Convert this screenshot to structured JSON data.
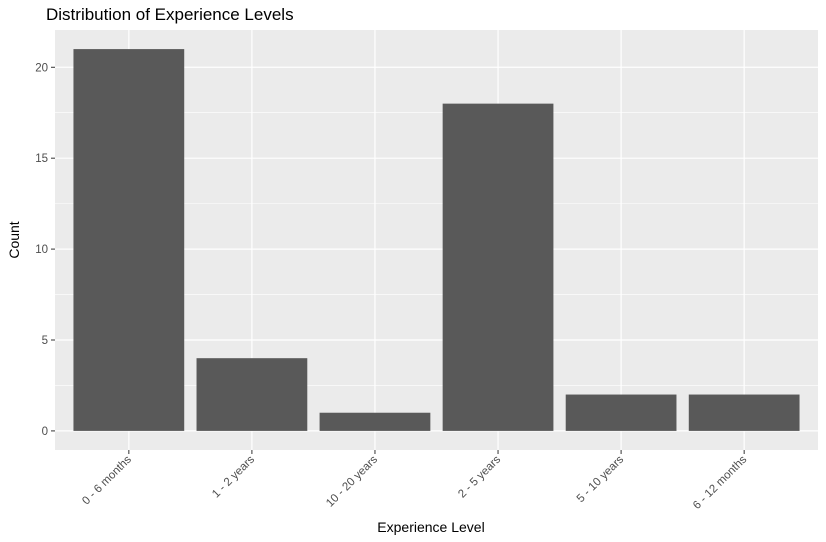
{
  "chart_data": {
    "type": "bar",
    "title": "Distribution of Experience Levels",
    "xlabel": "Experience Level",
    "ylabel": "Count",
    "categories": [
      "0 - 6 months",
      "1 - 2 years",
      "10 - 20 years",
      "2 - 5 years",
      "5 - 10 years",
      "6 - 12 months"
    ],
    "values": [
      21,
      4,
      1,
      18,
      2,
      2
    ],
    "ylim": [
      -1.05,
      22.05
    ],
    "yticks": [
      0,
      5,
      10,
      15,
      20
    ],
    "grid": true,
    "colors": {
      "bar": "#595959",
      "panel": "#ebebeb",
      "grid": "#ffffff"
    }
  }
}
